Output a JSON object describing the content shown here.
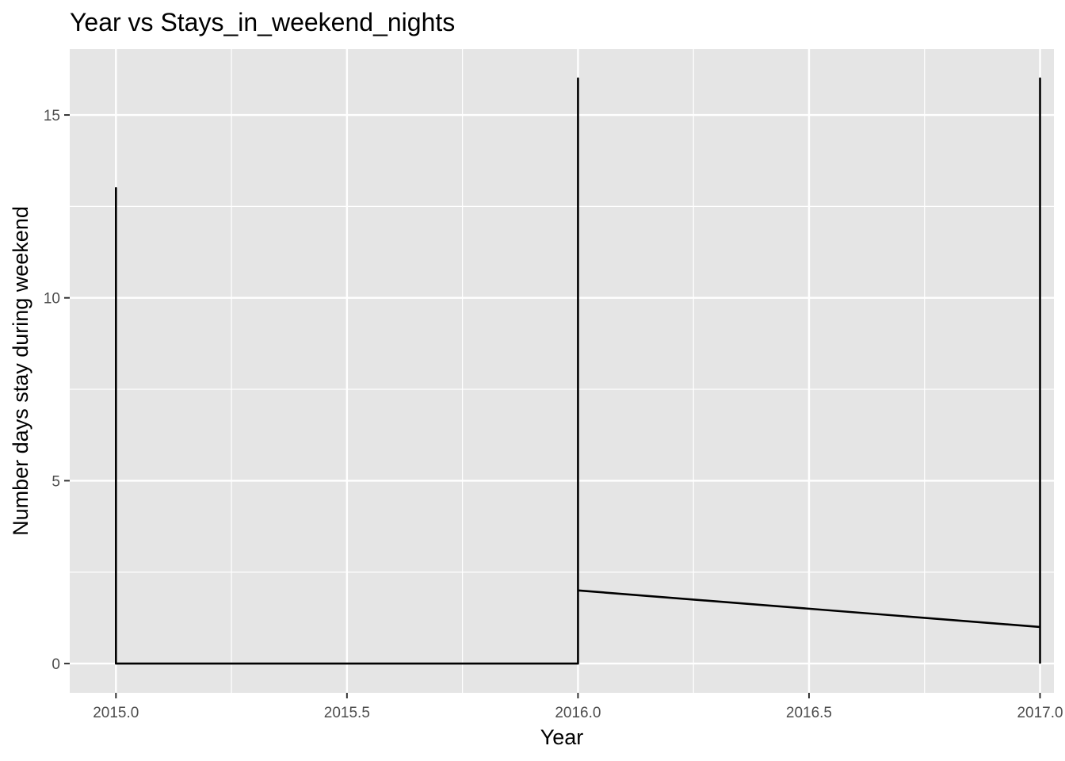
{
  "chart_data": {
    "type": "line",
    "title": "Year vs Stays_in_weekend_nights",
    "xlabel": "Year",
    "ylabel": "Number days stay during weekend",
    "xlim": [
      2014.9,
      2017.03
    ],
    "ylim": [
      -0.8,
      16.8
    ],
    "x_ticks": [
      2015.0,
      2015.5,
      2016.0,
      2016.5,
      2017.0
    ],
    "x_tick_labels": [
      "2015.0",
      "2015.5",
      "2016.0",
      "2016.5",
      "2017.0"
    ],
    "y_ticks": [
      0,
      5,
      10,
      15
    ],
    "y_tick_labels": [
      "0",
      "5",
      "10",
      "15"
    ],
    "grid": true,
    "background": "#e5e5e5",
    "grid_color": "#ffffff",
    "line_color": "#000000",
    "series": [
      {
        "x": [
          2015,
          2015,
          2015,
          2015,
          2015,
          2016,
          2016,
          2016,
          2016,
          2016,
          2016,
          2017,
          2017,
          2017,
          2017
        ],
        "y": [
          0,
          9,
          8,
          13,
          0,
          0,
          16,
          14,
          12,
          0,
          2,
          1,
          16,
          12,
          0
        ]
      }
    ]
  }
}
